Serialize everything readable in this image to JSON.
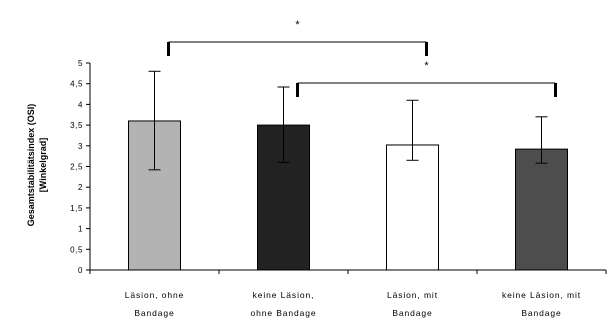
{
  "chart_data": {
    "type": "bar",
    "ylabel_line1": "Gesamtstabilitätsindex (OSI)",
    "ylabel_line2": "[Winkelgrad]",
    "ylim": [
      0,
      5
    ],
    "y_ticks": [
      "0",
      "0,5",
      "1",
      "1,5",
      "2",
      "2,5",
      "3",
      "3,5",
      "4",
      "4,5",
      "5"
    ],
    "categories": [
      {
        "line1": "Läsion, ohne",
        "line2": "Bandage"
      },
      {
        "line1": "keine Läsion,",
        "line2": "ohne Bandage"
      },
      {
        "line1": "Läsion, mit",
        "line2": "Bandage"
      },
      {
        "line1": "keine Läsion, mit",
        "line2": "Bandage"
      }
    ],
    "values": [
      3.6,
      3.5,
      3.02,
      2.92
    ],
    "error_upper": [
      4.8,
      4.42,
      4.1,
      3.7
    ],
    "error_lower": [
      2.42,
      2.6,
      2.65,
      2.58
    ],
    "colors": [
      "#b3b3b3",
      "#222222",
      "#ffffff",
      "#4d4d4d"
    ],
    "significance": [
      {
        "from": 0,
        "to": 2,
        "label": "*"
      },
      {
        "from": 1,
        "to": 3,
        "label": "*"
      }
    ],
    "grid": false,
    "legend": "none"
  }
}
